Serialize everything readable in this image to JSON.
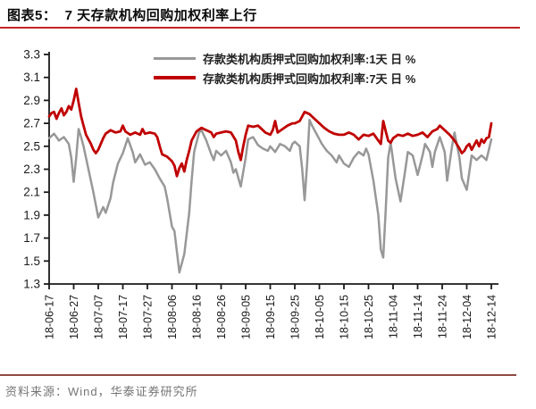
{
  "header": {
    "title": "图表5：  7 天存款机构回购加权利率上行"
  },
  "footer": {
    "source": "资料来源：Wind，华泰证券研究所"
  },
  "colors": {
    "rule_top": "#c42222",
    "rule_bottom": "#8f4a44",
    "axis": "#1a1a1a",
    "tick_label": "#1a1a1a",
    "background": "#ffffff"
  },
  "chart_data": {
    "type": "line",
    "title": "7 天存款机构回购加权利率上行",
    "xlabel": "",
    "ylabel": "",
    "unit": "%",
    "ylim": [
      1.3,
      3.3
    ],
    "ytick_step": 0.2,
    "ytick_labels": [
      "1.3",
      "1.5",
      "1.7",
      "1.9",
      "2.1",
      "2.3",
      "2.5",
      "2.7",
      "2.9",
      "3.1",
      "3.3"
    ],
    "x_tick_labels": [
      "18-06-17",
      "18-06-27",
      "18-07-07",
      "18-07-17",
      "18-07-27",
      "18-08-06",
      "18-08-16",
      "18-08-26",
      "18-09-05",
      "18-09-15",
      "18-09-25",
      "18-10-05",
      "18-10-15",
      "18-10-25",
      "18-11-04",
      "18-11-14",
      "18-11-24",
      "18-12-04",
      "18-12-14"
    ],
    "x_encoding": "days since 18-06-17 (10 days per tick)",
    "grid": false,
    "legend_position": "top-center",
    "series": [
      {
        "name": "存款类机构质押式回购加权利率:1天 日 %",
        "color": "#989898",
        "points": [
          [
            0,
            2.57
          ],
          [
            2,
            2.61
          ],
          [
            4,
            2.55
          ],
          [
            6,
            2.58
          ],
          [
            8,
            2.52
          ],
          [
            9,
            2.4
          ],
          [
            10,
            2.19
          ],
          [
            11,
            2.4
          ],
          [
            12,
            2.65
          ],
          [
            13,
            2.58
          ],
          [
            14,
            2.5
          ],
          [
            16,
            2.3
          ],
          [
            18,
            2.1
          ],
          [
            20,
            1.88
          ],
          [
            22,
            1.97
          ],
          [
            23,
            1.92
          ],
          [
            25,
            2.05
          ],
          [
            26,
            2.18
          ],
          [
            28,
            2.35
          ],
          [
            30,
            2.44
          ],
          [
            32,
            2.57
          ],
          [
            34,
            2.45
          ],
          [
            35,
            2.36
          ],
          [
            37,
            2.43
          ],
          [
            39,
            2.34
          ],
          [
            41,
            2.36
          ],
          [
            43,
            2.3
          ],
          [
            45,
            2.22
          ],
          [
            47,
            2.15
          ],
          [
            48,
            2.05
          ],
          [
            50,
            1.8
          ],
          [
            51,
            1.76
          ],
          [
            53,
            1.4
          ],
          [
            55,
            1.56
          ],
          [
            57,
            1.92
          ],
          [
            58,
            2.2
          ],
          [
            59,
            2.45
          ],
          [
            61,
            2.62
          ],
          [
            62,
            2.64
          ],
          [
            64,
            2.55
          ],
          [
            66,
            2.43
          ],
          [
            67,
            2.38
          ],
          [
            68,
            2.46
          ],
          [
            70,
            2.42
          ],
          [
            72,
            2.46
          ],
          [
            74,
            2.36
          ],
          [
            75,
            2.27
          ],
          [
            76,
            2.3
          ],
          [
            78,
            2.15
          ],
          [
            80,
            2.4
          ],
          [
            81,
            2.56
          ],
          [
            83,
            2.58
          ],
          [
            85,
            2.51
          ],
          [
            87,
            2.48
          ],
          [
            89,
            2.46
          ],
          [
            90,
            2.5
          ],
          [
            92,
            2.45
          ],
          [
            94,
            2.52
          ],
          [
            96,
            2.5
          ],
          [
            98,
            2.46
          ],
          [
            99,
            2.52
          ],
          [
            100,
            2.54
          ],
          [
            102,
            2.5
          ],
          [
            103,
            2.3
          ],
          [
            104,
            2.03
          ],
          [
            105,
            2.35
          ],
          [
            106,
            2.73
          ],
          [
            107,
            2.68
          ],
          [
            109,
            2.6
          ],
          [
            111,
            2.52
          ],
          [
            113,
            2.46
          ],
          [
            115,
            2.42
          ],
          [
            117,
            2.36
          ],
          [
            118,
            2.42
          ],
          [
            120,
            2.35
          ],
          [
            122,
            2.32
          ],
          [
            124,
            2.4
          ],
          [
            126,
            2.45
          ],
          [
            128,
            2.42
          ],
          [
            129,
            2.48
          ],
          [
            130,
            2.43
          ],
          [
            132,
            2.2
          ],
          [
            134,
            1.9
          ],
          [
            135,
            1.6
          ],
          [
            136,
            1.53
          ],
          [
            137,
            1.95
          ],
          [
            138,
            2.4
          ],
          [
            139,
            2.53
          ],
          [
            141,
            2.22
          ],
          [
            143,
            2.02
          ],
          [
            145,
            2.3
          ],
          [
            146,
            2.45
          ],
          [
            148,
            2.42
          ],
          [
            150,
            2.25
          ],
          [
            152,
            2.42
          ],
          [
            153,
            2.52
          ],
          [
            155,
            2.45
          ],
          [
            156,
            2.32
          ],
          [
            157,
            2.45
          ],
          [
            159,
            2.58
          ],
          [
            161,
            2.45
          ],
          [
            162,
            2.2
          ],
          [
            164,
            2.5
          ],
          [
            165,
            2.62
          ],
          [
            167,
            2.4
          ],
          [
            168,
            2.22
          ],
          [
            170,
            2.12
          ],
          [
            172,
            2.42
          ],
          [
            174,
            2.38
          ],
          [
            176,
            2.42
          ],
          [
            177,
            2.4
          ],
          [
            178,
            2.38
          ],
          [
            180,
            2.56
          ]
        ]
      },
      {
        "name": "存款类机构质押式回购加权利率:7天 日 %",
        "color": "#c00000",
        "points": [
          [
            0,
            2.76
          ],
          [
            1,
            2.79
          ],
          [
            2,
            2.8
          ],
          [
            3,
            2.74
          ],
          [
            4,
            2.79
          ],
          [
            5,
            2.83
          ],
          [
            6,
            2.77
          ],
          [
            7,
            2.8
          ],
          [
            8,
            2.85
          ],
          [
            9,
            2.82
          ],
          [
            10,
            2.9
          ],
          [
            11,
            3.0
          ],
          [
            12,
            2.88
          ],
          [
            13,
            2.76
          ],
          [
            14,
            2.68
          ],
          [
            15,
            2.6
          ],
          [
            17,
            2.52
          ],
          [
            18,
            2.47
          ],
          [
            19,
            2.44
          ],
          [
            20,
            2.47
          ],
          [
            21,
            2.52
          ],
          [
            22,
            2.57
          ],
          [
            23,
            2.61
          ],
          [
            25,
            2.64
          ],
          [
            27,
            2.62
          ],
          [
            29,
            2.63
          ],
          [
            30,
            2.68
          ],
          [
            31,
            2.63
          ],
          [
            33,
            2.6
          ],
          [
            35,
            2.62
          ],
          [
            37,
            2.6
          ],
          [
            38,
            2.65
          ],
          [
            39,
            2.61
          ],
          [
            41,
            2.62
          ],
          [
            43,
            2.61
          ],
          [
            44,
            2.58
          ],
          [
            45,
            2.5
          ],
          [
            46,
            2.43
          ],
          [
            48,
            2.41
          ],
          [
            50,
            2.37
          ],
          [
            51,
            2.33
          ],
          [
            52,
            2.24
          ],
          [
            53,
            2.31
          ],
          [
            54,
            2.35
          ],
          [
            55,
            2.28
          ],
          [
            56,
            2.38
          ],
          [
            57,
            2.46
          ],
          [
            58,
            2.55
          ],
          [
            60,
            2.63
          ],
          [
            62,
            2.66
          ],
          [
            64,
            2.64
          ],
          [
            66,
            2.62
          ],
          [
            67,
            2.58
          ],
          [
            68,
            2.61
          ],
          [
            70,
            2.62
          ],
          [
            72,
            2.63
          ],
          [
            74,
            2.62
          ],
          [
            76,
            2.55
          ],
          [
            77,
            2.45
          ],
          [
            78,
            2.38
          ],
          [
            79,
            2.5
          ],
          [
            80,
            2.6
          ],
          [
            81,
            2.68
          ],
          [
            83,
            2.67
          ],
          [
            85,
            2.68
          ],
          [
            87,
            2.64
          ],
          [
            88,
            2.62
          ],
          [
            90,
            2.6
          ],
          [
            91,
            2.64
          ],
          [
            92,
            2.72
          ],
          [
            93,
            2.62
          ],
          [
            95,
            2.65
          ],
          [
            97,
            2.68
          ],
          [
            99,
            2.7
          ],
          [
            100,
            2.7
          ],
          [
            102,
            2.72
          ],
          [
            104,
            2.8
          ],
          [
            106,
            2.78
          ],
          [
            108,
            2.74
          ],
          [
            110,
            2.7
          ],
          [
            112,
            2.66
          ],
          [
            114,
            2.63
          ],
          [
            116,
            2.61
          ],
          [
            118,
            2.6
          ],
          [
            120,
            2.6
          ],
          [
            122,
            2.62
          ],
          [
            124,
            2.6
          ],
          [
            126,
            2.56
          ],
          [
            128,
            2.6
          ],
          [
            130,
            2.59
          ],
          [
            132,
            2.61
          ],
          [
            134,
            2.55
          ],
          [
            135,
            2.52
          ],
          [
            136,
            2.72
          ],
          [
            137,
            2.63
          ],
          [
            138,
            2.55
          ],
          [
            139,
            2.53
          ],
          [
            140,
            2.57
          ],
          [
            142,
            2.6
          ],
          [
            144,
            2.59
          ],
          [
            146,
            2.61
          ],
          [
            148,
            2.59
          ],
          [
            150,
            2.6
          ],
          [
            152,
            2.62
          ],
          [
            154,
            2.58
          ],
          [
            156,
            2.63
          ],
          [
            158,
            2.65
          ],
          [
            159,
            2.68
          ],
          [
            161,
            2.64
          ],
          [
            163,
            2.6
          ],
          [
            165,
            2.55
          ],
          [
            167,
            2.48
          ],
          [
            168,
            2.44
          ],
          [
            169,
            2.46
          ],
          [
            170,
            2.5
          ],
          [
            171,
            2.52
          ],
          [
            172,
            2.47
          ],
          [
            174,
            2.55
          ],
          [
            175,
            2.5
          ],
          [
            176,
            2.56
          ],
          [
            177,
            2.53
          ],
          [
            178,
            2.57
          ],
          [
            179,
            2.58
          ],
          [
            180,
            2.7
          ]
        ]
      }
    ]
  }
}
